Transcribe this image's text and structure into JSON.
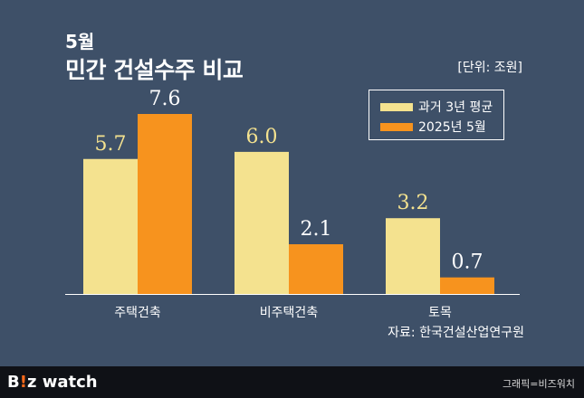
{
  "title_small": "5월",
  "title_main": "민간 건설수주 비교",
  "unit_label": "[단위: 조원]",
  "source": "자료: 한국건설산업연구원",
  "footer": {
    "brand_prefix": "B",
    "brand_accent": "!",
    "brand_suffix": "z watch",
    "credit": "그래픽=비즈워치"
  },
  "colors": {
    "background": "#3e5068",
    "series_past": "#f4e28f",
    "series_2025": "#f7931e",
    "value_label_past": "#f4e28f",
    "value_label_2025": "#ffffff"
  },
  "chart_data": {
    "type": "bar",
    "title": "민간 건설수주 비교",
    "subtitle": "5월",
    "unit": "[단위: 조원]",
    "categories": [
      "주택건축",
      "비주택건축",
      "토목"
    ],
    "series": [
      {
        "name": "과거 3년 평균",
        "values": [
          5.7,
          6.0,
          3.2
        ]
      },
      {
        "name": "2025년 5월",
        "values": [
          7.6,
          2.1,
          0.7
        ]
      }
    ],
    "value_labels": [
      [
        "5.7",
        "6.0",
        "3.2"
      ],
      [
        "7.6",
        "2.1",
        "0.7"
      ]
    ],
    "ylim": [
      0,
      7.6
    ],
    "grid": false,
    "legend": "top-right"
  }
}
